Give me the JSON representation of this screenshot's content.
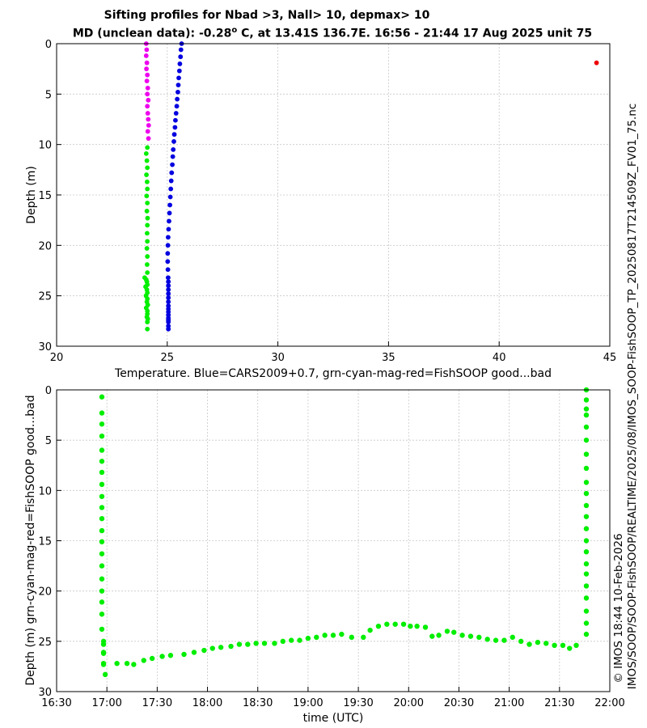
{
  "header": {
    "title_line1": "Sifting profiles for Nbad >3, Nall> 10, depmax> 10",
    "title_line2_pre": "MD (unclean data): -0.28",
    "title_line2_sup": "o",
    "title_line2_post": " C, at 13.41S 136.7E. 16:56 - 21:44 17 Aug 2025 unit 75"
  },
  "side_text": {
    "filename": "IMOS_SOOP-FishSOOP_TP_20250817T214509Z_FV01_75.nc",
    "path": "IMOS/SOOP/SOOP-FishSOOP/REALTIME/2025/08/",
    "credit": "© IMOS 18:44 10-Feb-2026"
  },
  "colors": {
    "blue": "#0000e0",
    "green": "#00ee00",
    "magenta": "#ee00ee",
    "red": "#ee0000",
    "grid": "#c8c8c8"
  },
  "chart_data": [
    {
      "type": "scatter",
      "title": "",
      "xlabel": "Temperature. Blue=CARS2009+0.7, grn-cyan-mag-red=FishSOOP good...bad",
      "ylabel": "Depth (m)",
      "xlim": [
        20,
        45
      ],
      "ylim": [
        30,
        0
      ],
      "y_reversed": true,
      "grid": true,
      "xticks": [
        20,
        25,
        30,
        35,
        40,
        45
      ],
      "yticks": [
        0,
        5,
        10,
        15,
        20,
        25,
        30
      ],
      "series": [
        {
          "color": "blue",
          "x": [
            25.65,
            25.62,
            25.6,
            25.57,
            25.55,
            25.52,
            25.5,
            25.48,
            25.45,
            25.43,
            25.4,
            25.37,
            25.35,
            25.32,
            25.3,
            25.27,
            25.25,
            25.23,
            25.2,
            25.18,
            25.16,
            25.14,
            25.12,
            25.1,
            25.08,
            25.06,
            25.04,
            25.03,
            25.02,
            25.02,
            25.03,
            25.04,
            25.05,
            25.05,
            25.05,
            25.05,
            25.05,
            25.05,
            25.05,
            25.05,
            25.05,
            25.05,
            25.05,
            25.05,
            25.05,
            25.05,
            25.05
          ],
          "y": [
            0,
            0.6,
            1.3,
            2,
            2.7,
            3.4,
            4.1,
            4.8,
            5.5,
            6.2,
            6.9,
            7.6,
            8.3,
            9,
            9.7,
            10.5,
            11.2,
            12,
            12.8,
            13.6,
            14.4,
            15.2,
            16,
            16.8,
            17.6,
            18.4,
            19.2,
            20,
            20.8,
            21.6,
            22.4,
            23.2,
            23.6,
            24,
            24.4,
            24.8,
            25.2,
            25.6,
            26,
            26.3,
            26.6,
            26.9,
            27.2,
            27.4,
            27.6,
            28,
            28.3
          ]
        },
        {
          "color": "magenta",
          "x": [
            24.05,
            24.07,
            24.05,
            24.08,
            24.06,
            24.1,
            24.08,
            24.12,
            24.1,
            24.14,
            24.1,
            24.12,
            24.14,
            24.16,
            24.12,
            24.15
          ],
          "y": [
            0,
            0.6,
            1.2,
            1.9,
            2.5,
            3.1,
            3.7,
            4.4,
            5,
            5.6,
            6.2,
            6.9,
            7.5,
            8.1,
            8.7,
            9.4
          ]
        },
        {
          "color": "green",
          "x": [
            24.1,
            24.05,
            24.08,
            24.1,
            24.06,
            24.09,
            24.1,
            24.07,
            24.1,
            24.08,
            24.11,
            24.1,
            24.09,
            24.1,
            24.08,
            24.1,
            24.09,
            24.1,
            23.98,
            24.05,
            24.08,
            24.1,
            24.02,
            24.08,
            24.1,
            24.04,
            24.1,
            24.08,
            24.12,
            24.05,
            24.1,
            24.1,
            24.08,
            24.12,
            24.1,
            24.1
          ],
          "y": [
            10.3,
            10.9,
            11.6,
            12.3,
            13,
            13.7,
            14.4,
            15.1,
            15.8,
            16.6,
            17.3,
            18,
            18.8,
            19.6,
            20.3,
            21.1,
            21.9,
            22.7,
            23.2,
            23.4,
            23.6,
            23.9,
            24.1,
            24.4,
            24.7,
            25,
            25.3,
            25.6,
            25.9,
            26.2,
            26.5,
            26.8,
            27.1,
            27.3,
            27.6,
            28.3
          ]
        },
        {
          "color": "red",
          "x": [
            44.4
          ],
          "y": [
            1.9
          ]
        }
      ]
    },
    {
      "type": "scatter",
      "title": "",
      "xlabel": "time (UTC)",
      "ylabel": "Depth (m) grn-cyan-mag-red=FishSOOP good...bad",
      "xlim": [
        "16:30",
        "22:00"
      ],
      "ylim": [
        30,
        0
      ],
      "y_reversed": true,
      "grid": true,
      "xticks": [
        "16:30",
        "17:00",
        "17:30",
        "18:00",
        "18:30",
        "19:00",
        "19:30",
        "20:00",
        "20:30",
        "21:00",
        "21:30",
        "22:00"
      ],
      "yticks": [
        0,
        5,
        10,
        15,
        20,
        25,
        30
      ],
      "series": [
        {
          "color": "green",
          "time": [
            "16:57",
            "16:57",
            "16:57",
            "16:57",
            "16:57",
            "16:57",
            "16:57",
            "16:57",
            "16:57",
            "16:57",
            "16:57",
            "16:57",
            "16:57",
            "16:57",
            "16:57",
            "16:57",
            "16:57",
            "16:57",
            "16:57",
            "16:57",
            "16:58",
            "16:58",
            "16:58",
            "16:58",
            "16:58",
            "16:58",
            "16:59",
            "17:06",
            "17:12",
            "17:16",
            "17:22",
            "17:27",
            "17:33",
            "17:38",
            "17:46",
            "17:52",
            "17:58",
            "18:03",
            "18:08",
            "18:14",
            "18:19",
            "18:24",
            "18:29",
            "18:34",
            "18:40",
            "18:45",
            "18:50",
            "18:55",
            "19:00",
            "19:05",
            "19:10",
            "19:15",
            "19:20",
            "19:26",
            "19:33",
            "19:37",
            "19:42",
            "19:47",
            "19:52",
            "19:57",
            "20:01",
            "20:05",
            "20:10",
            "20:14",
            "20:18",
            "20:23",
            "20:27",
            "20:32",
            "20:37",
            "20:42",
            "20:47",
            "20:52",
            "20:57",
            "21:02",
            "21:07",
            "21:12",
            "21:17",
            "21:22",
            "21:27",
            "21:32",
            "21:36",
            "21:40",
            "21:46",
            "21:46",
            "21:46",
            "21:46",
            "21:46",
            "21:46",
            "21:46",
            "21:46",
            "21:46",
            "21:46",
            "21:46",
            "21:46",
            "21:46",
            "21:46",
            "21:46",
            "21:46",
            "21:46",
            "21:46",
            "21:46",
            "21:46",
            "21:46",
            "21:46"
          ],
          "depth": [
            0.7,
            2.3,
            3.4,
            4.6,
            6.0,
            7.1,
            8.2,
            9.4,
            10.6,
            11.7,
            12.8,
            14.0,
            15.1,
            16.3,
            17.5,
            18.8,
            20.0,
            21.1,
            22.3,
            23.8,
            25.0,
            25.3,
            26.1,
            26.2,
            27.2,
            27.3,
            28.3,
            27.2,
            27.2,
            27.3,
            26.9,
            26.7,
            26.5,
            26.4,
            26.3,
            26.1,
            25.9,
            25.7,
            25.6,
            25.5,
            25.3,
            25.3,
            25.2,
            25.2,
            25.2,
            25.0,
            24.9,
            24.9,
            24.7,
            24.6,
            24.4,
            24.4,
            24.3,
            24.6,
            24.6,
            23.9,
            23.5,
            23.3,
            23.3,
            23.3,
            23.5,
            23.5,
            23.6,
            24.5,
            24.4,
            24.0,
            24.1,
            24.4,
            24.5,
            24.6,
            24.8,
            24.9,
            24.9,
            24.6,
            25.0,
            25.3,
            25.1,
            25.2,
            25.4,
            25.4,
            25.7,
            25.4,
            24.3,
            23.2,
            22.0,
            20.7,
            19.5,
            18.3,
            17.3,
            16.1,
            15.0,
            13.8,
            12.6,
            11.5,
            10.3,
            9.2,
            7.8,
            6.4,
            5.0,
            3.7,
            2.5,
            1.9,
            1.0,
            0.0
          ]
        }
      ]
    }
  ]
}
